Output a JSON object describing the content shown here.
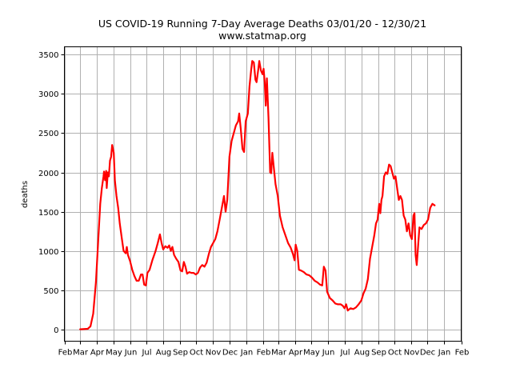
{
  "chart_data": {
    "type": "line",
    "title": "US COVID-19 Running 7-Day Average Deaths 03/01/20 - 12/30/21",
    "subtitle": "www.statmap.org",
    "xlabel": "",
    "ylabel": "deaths",
    "xlim": [
      "2020-02-01",
      "2022-02-01"
    ],
    "ylim": [
      -150,
      3600
    ],
    "grid": true,
    "legend": "none",
    "line_color": "#ff0000",
    "x_ticks": [
      {
        "date": "2020-02-01",
        "label": "Feb"
      },
      {
        "date": "2020-03-01",
        "label": "Mar"
      },
      {
        "date": "2020-04-01",
        "label": "Apr"
      },
      {
        "date": "2020-05-01",
        "label": "May"
      },
      {
        "date": "2020-06-01",
        "label": "Jun"
      },
      {
        "date": "2020-07-01",
        "label": "Jul"
      },
      {
        "date": "2020-08-01",
        "label": "Aug"
      },
      {
        "date": "2020-09-01",
        "label": "Sep"
      },
      {
        "date": "2020-10-01",
        "label": "Oct"
      },
      {
        "date": "2020-11-01",
        "label": "Nov"
      },
      {
        "date": "2020-12-01",
        "label": "Dec"
      },
      {
        "date": "2021-01-01",
        "label": "Jan"
      },
      {
        "date": "2021-02-01",
        "label": "Feb"
      },
      {
        "date": "2021-03-01",
        "label": "Mar"
      },
      {
        "date": "2021-04-01",
        "label": "Apr"
      },
      {
        "date": "2021-05-01",
        "label": "May"
      },
      {
        "date": "2021-06-01",
        "label": "Jun"
      },
      {
        "date": "2021-07-01",
        "label": "Jul"
      },
      {
        "date": "2021-08-01",
        "label": "Aug"
      },
      {
        "date": "2021-09-01",
        "label": "Sep"
      },
      {
        "date": "2021-10-01",
        "label": "Oct"
      },
      {
        "date": "2021-11-01",
        "label": "Nov"
      },
      {
        "date": "2021-12-01",
        "label": "Dec"
      },
      {
        "date": "2022-01-01",
        "label": "Jan"
      },
      {
        "date": "2022-02-01",
        "label": "Feb"
      }
    ],
    "y_ticks": [
      0,
      500,
      1000,
      1500,
      2000,
      2500,
      3000,
      3500
    ],
    "series": [
      {
        "name": "7-day average deaths",
        "points": [
          [
            "2020-03-01",
            2
          ],
          [
            "2020-03-15",
            8
          ],
          [
            "2020-03-20",
            40
          ],
          [
            "2020-03-25",
            200
          ],
          [
            "2020-03-30",
            600
          ],
          [
            "2020-04-03",
            1100
          ],
          [
            "2020-04-07",
            1600
          ],
          [
            "2020-04-10",
            1800
          ],
          [
            "2020-04-13",
            1950
          ],
          [
            "2020-04-14",
            2010
          ],
          [
            "2020-04-16",
            1900
          ],
          [
            "2020-04-18",
            2020
          ],
          [
            "2020-04-19",
            1800
          ],
          [
            "2020-04-21",
            2000
          ],
          [
            "2020-04-23",
            1950
          ],
          [
            "2020-04-25",
            2150
          ],
          [
            "2020-04-27",
            2200
          ],
          [
            "2020-04-29",
            2350
          ],
          [
            "2020-05-02",
            2250
          ],
          [
            "2020-05-04",
            1900
          ],
          [
            "2020-05-07",
            1700
          ],
          [
            "2020-05-10",
            1550
          ],
          [
            "2020-05-13",
            1350
          ],
          [
            "2020-05-17",
            1150
          ],
          [
            "2020-05-20",
            1000
          ],
          [
            "2020-05-24",
            970
          ],
          [
            "2020-05-26",
            1050
          ],
          [
            "2020-05-28",
            950
          ],
          [
            "2020-06-01",
            870
          ],
          [
            "2020-06-05",
            760
          ],
          [
            "2020-06-09",
            680
          ],
          [
            "2020-06-13",
            620
          ],
          [
            "2020-06-17",
            620
          ],
          [
            "2020-06-21",
            700
          ],
          [
            "2020-06-24",
            700
          ],
          [
            "2020-06-27",
            570
          ],
          [
            "2020-06-30",
            560
          ],
          [
            "2020-07-03",
            720
          ],
          [
            "2020-07-07",
            760
          ],
          [
            "2020-07-12",
            880
          ],
          [
            "2020-07-18",
            1000
          ],
          [
            "2020-07-22",
            1100
          ],
          [
            "2020-07-26",
            1210
          ],
          [
            "2020-07-29",
            1100
          ],
          [
            "2020-08-01",
            1020
          ],
          [
            "2020-08-05",
            1060
          ],
          [
            "2020-08-09",
            1040
          ],
          [
            "2020-08-12",
            1070
          ],
          [
            "2020-08-15",
            1000
          ],
          [
            "2020-08-18",
            1050
          ],
          [
            "2020-08-21",
            950
          ],
          [
            "2020-08-25",
            900
          ],
          [
            "2020-08-29",
            860
          ],
          [
            "2020-09-02",
            750
          ],
          [
            "2020-09-05",
            740
          ],
          [
            "2020-09-08",
            860
          ],
          [
            "2020-09-11",
            800
          ],
          [
            "2020-09-14",
            710
          ],
          [
            "2020-09-18",
            730
          ],
          [
            "2020-09-22",
            720
          ],
          [
            "2020-09-26",
            720
          ],
          [
            "2020-09-30",
            700
          ],
          [
            "2020-10-04",
            720
          ],
          [
            "2020-10-08",
            790
          ],
          [
            "2020-10-12",
            820
          ],
          [
            "2020-10-16",
            800
          ],
          [
            "2020-10-20",
            850
          ],
          [
            "2020-10-24",
            960
          ],
          [
            "2020-10-28",
            1050
          ],
          [
            "2020-11-01",
            1100
          ],
          [
            "2020-11-05",
            1150
          ],
          [
            "2020-11-09",
            1250
          ],
          [
            "2020-11-13",
            1400
          ],
          [
            "2020-11-17",
            1550
          ],
          [
            "2020-11-21",
            1700
          ],
          [
            "2020-11-24",
            1500
          ],
          [
            "2020-11-27",
            1650
          ],
          [
            "2020-12-01",
            2200
          ],
          [
            "2020-12-05",
            2400
          ],
          [
            "2020-12-09",
            2500
          ],
          [
            "2020-12-13",
            2600
          ],
          [
            "2020-12-17",
            2650
          ],
          [
            "2020-12-19",
            2750
          ],
          [
            "2020-12-22",
            2550
          ],
          [
            "2020-12-25",
            2300
          ],
          [
            "2020-12-28",
            2260
          ],
          [
            "2020-12-31",
            2650
          ],
          [
            "2021-01-04",
            2750
          ],
          [
            "2021-01-07",
            3100
          ],
          [
            "2021-01-10",
            3300
          ],
          [
            "2021-01-12",
            3420
          ],
          [
            "2021-01-15",
            3400
          ],
          [
            "2021-01-18",
            3180
          ],
          [
            "2021-01-20",
            3150
          ],
          [
            "2021-01-23",
            3300
          ],
          [
            "2021-01-25",
            3420
          ],
          [
            "2021-01-28",
            3300
          ],
          [
            "2021-01-31",
            3250
          ],
          [
            "2021-02-02",
            3320
          ],
          [
            "2021-02-04",
            3150
          ],
          [
            "2021-02-06",
            2850
          ],
          [
            "2021-02-08",
            3200
          ],
          [
            "2021-02-11",
            2700
          ],
          [
            "2021-02-14",
            2000
          ],
          [
            "2021-02-16",
            1990
          ],
          [
            "2021-02-18",
            2250
          ],
          [
            "2021-02-21",
            2050
          ],
          [
            "2021-02-24",
            1850
          ],
          [
            "2021-02-28",
            1700
          ],
          [
            "2021-03-04",
            1450
          ],
          [
            "2021-03-09",
            1300
          ],
          [
            "2021-03-14",
            1200
          ],
          [
            "2021-03-19",
            1100
          ],
          [
            "2021-03-24",
            1040
          ],
          [
            "2021-03-28",
            960
          ],
          [
            "2021-03-31",
            880
          ],
          [
            "2021-04-02",
            1080
          ],
          [
            "2021-04-05",
            1000
          ],
          [
            "2021-04-08",
            760
          ],
          [
            "2021-04-12",
            750
          ],
          [
            "2021-04-17",
            730
          ],
          [
            "2021-04-22",
            700
          ],
          [
            "2021-04-27",
            690
          ],
          [
            "2021-05-02",
            660
          ],
          [
            "2021-05-07",
            620
          ],
          [
            "2021-05-12",
            600
          ],
          [
            "2021-05-17",
            570
          ],
          [
            "2021-05-21",
            560
          ],
          [
            "2021-05-24",
            800
          ],
          [
            "2021-05-27",
            750
          ],
          [
            "2021-05-30",
            480
          ],
          [
            "2021-06-04",
            400
          ],
          [
            "2021-06-09",
            370
          ],
          [
            "2021-06-14",
            330
          ],
          [
            "2021-06-19",
            320
          ],
          [
            "2021-06-24",
            320
          ],
          [
            "2021-06-28",
            300
          ],
          [
            "2021-07-01",
            270
          ],
          [
            "2021-07-04",
            320
          ],
          [
            "2021-07-07",
            240
          ],
          [
            "2021-07-12",
            270
          ],
          [
            "2021-07-17",
            260
          ],
          [
            "2021-07-22",
            280
          ],
          [
            "2021-07-27",
            320
          ],
          [
            "2021-08-01",
            370
          ],
          [
            "2021-08-05",
            460
          ],
          [
            "2021-08-09",
            520
          ],
          [
            "2021-08-13",
            640
          ],
          [
            "2021-08-17",
            900
          ],
          [
            "2021-08-21",
            1050
          ],
          [
            "2021-08-25",
            1200
          ],
          [
            "2021-08-28",
            1350
          ],
          [
            "2021-08-31",
            1400
          ],
          [
            "2021-09-03",
            1600
          ],
          [
            "2021-09-05",
            1480
          ],
          [
            "2021-09-07",
            1650
          ],
          [
            "2021-09-09",
            1700
          ],
          [
            "2021-09-12",
            1950
          ],
          [
            "2021-09-15",
            2000
          ],
          [
            "2021-09-18",
            1980
          ],
          [
            "2021-09-21",
            2100
          ],
          [
            "2021-09-24",
            2080
          ],
          [
            "2021-09-27",
            2000
          ],
          [
            "2021-09-30",
            1920
          ],
          [
            "2021-10-03",
            1950
          ],
          [
            "2021-10-06",
            1800
          ],
          [
            "2021-10-09",
            1650
          ],
          [
            "2021-10-12",
            1700
          ],
          [
            "2021-10-15",
            1650
          ],
          [
            "2021-10-18",
            1450
          ],
          [
            "2021-10-21",
            1400
          ],
          [
            "2021-10-24",
            1250
          ],
          [
            "2021-10-27",
            1350
          ],
          [
            "2021-10-30",
            1200
          ],
          [
            "2021-11-02",
            1150
          ],
          [
            "2021-11-05",
            1450
          ],
          [
            "2021-11-07",
            1480
          ],
          [
            "2021-11-09",
            950
          ],
          [
            "2021-11-11",
            820
          ],
          [
            "2021-11-13",
            1000
          ],
          [
            "2021-11-16",
            1300
          ],
          [
            "2021-11-20",
            1280
          ],
          [
            "2021-11-24",
            1330
          ],
          [
            "2021-11-28",
            1350
          ],
          [
            "2021-12-02",
            1400
          ],
          [
            "2021-12-06",
            1550
          ],
          [
            "2021-12-10",
            1600
          ],
          [
            "2021-12-14",
            1580
          ]
        ]
      }
    ]
  }
}
